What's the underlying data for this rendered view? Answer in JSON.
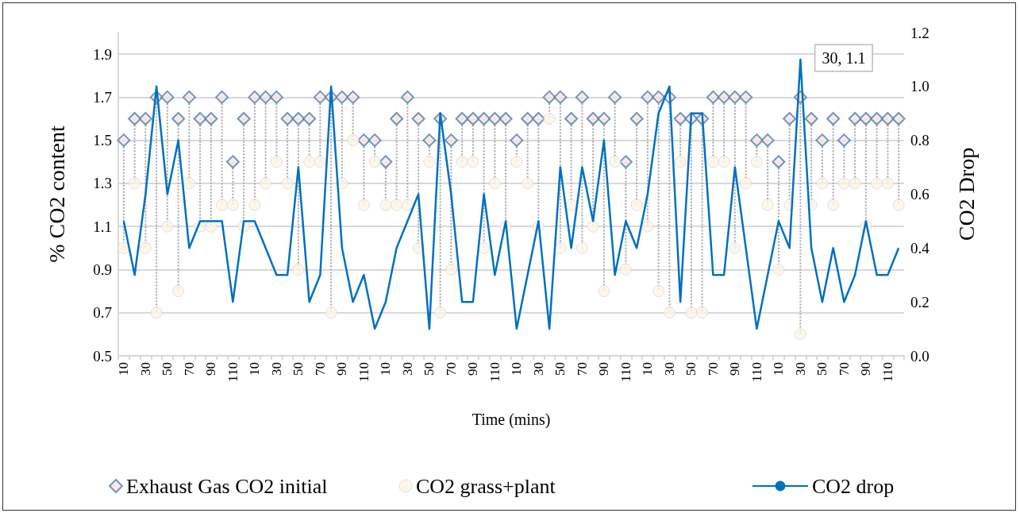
{
  "chart_data": {
    "type": "scatter",
    "xlabel": "Time (mins)",
    "ylabel": "% CO2 content",
    "y2label": "CO2 Drop",
    "categories": [
      "10",
      null,
      "30",
      null,
      "50",
      null,
      "70",
      null,
      "90",
      null,
      "110",
      null,
      "10",
      null,
      "30",
      null,
      "50",
      null,
      "70",
      null,
      "90",
      null,
      "110",
      null,
      "10",
      null,
      "30",
      null,
      "50",
      null,
      "70",
      null,
      "90",
      null,
      "110",
      null,
      "10",
      null,
      "30",
      null,
      "50",
      null,
      "70",
      null,
      "90",
      null,
      "110",
      null,
      "10",
      null,
      "30",
      null,
      "50",
      null,
      "70",
      null,
      "90",
      null,
      "110",
      null,
      "10",
      null,
      "30",
      null,
      "50",
      null,
      "70",
      null,
      "90",
      null,
      "110",
      null
    ],
    "series": [
      {
        "name": "Exhaust Gas CO2 initial",
        "marker": "diamond",
        "color": "#4a7ebb",
        "values": [
          1.5,
          1.6,
          1.6,
          1.7,
          1.7,
          1.6,
          1.7,
          1.6,
          1.6,
          1.7,
          1.4,
          1.6,
          1.7,
          1.7,
          1.7,
          1.6,
          1.6,
          1.6,
          1.7,
          1.7,
          1.7,
          1.7,
          1.5,
          1.5,
          1.4,
          1.6,
          1.7,
          1.6,
          1.5,
          1.6,
          1.5,
          1.6,
          1.6,
          1.6,
          1.6,
          1.6,
          1.5,
          1.6,
          1.6,
          1.7,
          1.7,
          1.6,
          1.7,
          1.6,
          1.6,
          1.7,
          1.4,
          1.6,
          1.7,
          1.7,
          1.7,
          1.6,
          1.6,
          1.6,
          1.7,
          1.7,
          1.7,
          1.7,
          1.5,
          1.5,
          1.4,
          1.6,
          1.7,
          1.6,
          1.5,
          1.6,
          1.5,
          1.6,
          1.6,
          1.6,
          1.6,
          1.6
        ]
      },
      {
        "name": "CO2 grass+plant",
        "marker": "circle",
        "color": "#fdf5e6",
        "values": [
          1.0,
          1.3,
          1.0,
          0.7,
          1.1,
          0.8,
          1.3,
          1.1,
          1.1,
          1.2,
          1.2,
          1.1,
          1.2,
          1.3,
          1.4,
          1.3,
          0.9,
          1.4,
          1.4,
          0.7,
          1.3,
          1.5,
          1.2,
          1.4,
          1.2,
          1.2,
          1.2,
          1.0,
          1.4,
          0.7,
          0.9,
          1.4,
          1.4,
          1.0,
          1.3,
          1.1,
          1.4,
          1.3,
          1.1,
          1.6,
          1.0,
          1.2,
          1.0,
          1.1,
          0.8,
          1.4,
          0.9,
          1.2,
          1.1,
          0.8,
          0.7,
          1.4,
          0.7,
          0.7,
          1.4,
          1.4,
          1.0,
          1.3,
          1.4,
          1.2,
          0.9,
          1.2,
          0.6,
          1.2,
          1.3,
          1.2,
          1.3,
          1.3,
          1.1,
          1.3,
          1.3,
          1.2
        ]
      },
      {
        "name": "CO2 drop",
        "type": "line",
        "axis": "y2",
        "marker": "none",
        "line_style": "solid",
        "color": "#0070c0",
        "values": [
          0.5,
          0.3,
          0.6,
          1.0,
          0.6,
          0.8,
          0.4,
          0.5,
          0.5,
          0.5,
          0.2,
          0.5,
          0.5,
          0.4,
          0.3,
          0.3,
          0.7,
          0.2,
          0.3,
          1.0,
          0.4,
          0.2,
          0.3,
          0.1,
          0.2,
          0.4,
          0.5,
          0.6,
          0.1,
          0.9,
          0.6,
          0.2,
          0.2,
          0.6,
          0.3,
          0.5,
          0.1,
          0.3,
          0.5,
          0.1,
          0.7,
          0.4,
          0.7,
          0.5,
          0.8,
          0.3,
          0.5,
          0.4,
          0.6,
          0.9,
          1.0,
          0.2,
          0.9,
          0.9,
          0.3,
          0.3,
          0.7,
          0.4,
          0.1,
          0.3,
          0.5,
          0.4,
          1.1,
          0.4,
          0.2,
          0.4,
          0.2,
          0.3,
          0.5,
          0.3,
          0.3,
          0.4
        ]
      }
    ],
    "ylim": [
      0.5,
      2.0
    ],
    "yticks": [
      0.5,
      0.7,
      0.9,
      1.1,
      1.3,
      1.5,
      1.7,
      1.9
    ],
    "y2lim": [
      0,
      1.2
    ],
    "y2ticks": [
      {
        "value": 0,
        "label": "0.0"
      },
      0.2,
      0.4,
      0.6,
      0.8,
      {
        "value": 1,
        "label": "1.0"
      },
      1.2
    ],
    "annotations": [
      "30, 1.1"
    ],
    "grid": "y",
    "legend": "bottom"
  }
}
